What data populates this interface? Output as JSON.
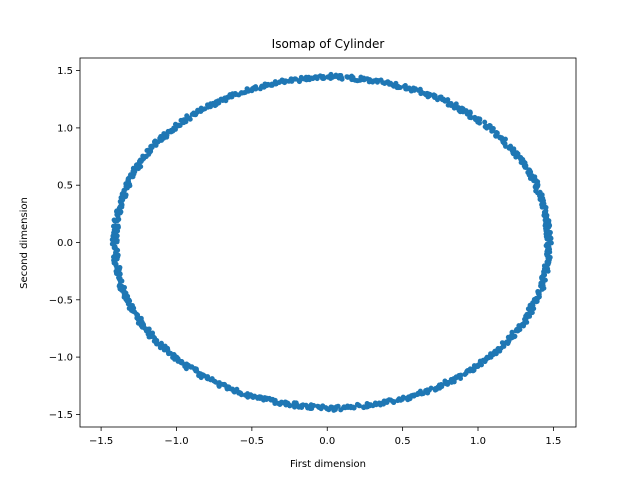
{
  "chart_data": {
    "type": "scatter",
    "title": "Isomap of Cylinder",
    "xlabel": "First dimension",
    "ylabel": "Second dimension",
    "xlim": [
      -1.64,
      1.65
    ],
    "ylim": [
      -1.61,
      1.61
    ],
    "xticks": [
      -1.5,
      -1.0,
      -0.5,
      0.0,
      0.5,
      1.0,
      1.5
    ],
    "xtick_labels": [
      "−1.5",
      "−1.0",
      "−0.5",
      "0.0",
      "0.5",
      "1.0",
      "1.5"
    ],
    "yticks": [
      -1.5,
      -1.0,
      -0.5,
      0.0,
      0.5,
      1.0,
      1.5
    ],
    "ytick_labels": [
      "−1.5",
      "−1.0",
      "−0.5",
      "0.0",
      "0.5",
      "1.0",
      "1.5"
    ],
    "grid": false,
    "legend": "none",
    "marker_color": "#1f77b4",
    "series": [
      {
        "points_description": "approximately 1000 points lying on an ellipse centered near (0.03, 0.0) with x semi-axis ~1.44 and y semi-axis ~1.45",
        "x": [
          1.47,
          1.46,
          1.43,
          1.38,
          1.31,
          1.22,
          1.11,
          0.99,
          0.85,
          0.7,
          0.54,
          0.37,
          0.2,
          0.03,
          -0.14,
          -0.31,
          -0.48,
          -0.64,
          -0.79,
          -0.93,
          -1.05,
          -1.16,
          -1.25,
          -1.32,
          -1.37,
          -1.4,
          -1.41,
          -1.4,
          -1.37,
          -1.32,
          -1.25,
          -1.16,
          -1.05,
          -0.93,
          -0.79,
          -0.64,
          -0.48,
          -0.31,
          -0.14,
          0.03,
          0.2,
          0.37,
          0.54,
          0.7,
          0.85,
          0.99,
          1.11,
          1.22,
          1.31,
          1.38,
          1.43,
          1.46
        ],
        "y": [
          0.0,
          0.17,
          0.35,
          0.52,
          0.68,
          0.83,
          0.96,
          1.08,
          1.19,
          1.28,
          1.35,
          1.4,
          1.43,
          1.45,
          1.43,
          1.4,
          1.35,
          1.28,
          1.19,
          1.08,
          0.96,
          0.83,
          0.68,
          0.52,
          0.35,
          0.17,
          0.0,
          -0.17,
          -0.35,
          -0.52,
          -0.68,
          -0.83,
          -0.96,
          -1.08,
          -1.19,
          -1.28,
          -1.35,
          -1.4,
          -1.43,
          -1.45,
          -1.43,
          -1.4,
          -1.35,
          -1.28,
          -1.19,
          -1.08,
          -0.96,
          -0.83,
          -0.68,
          -0.52,
          -0.35,
          -0.17
        ]
      }
    ]
  }
}
